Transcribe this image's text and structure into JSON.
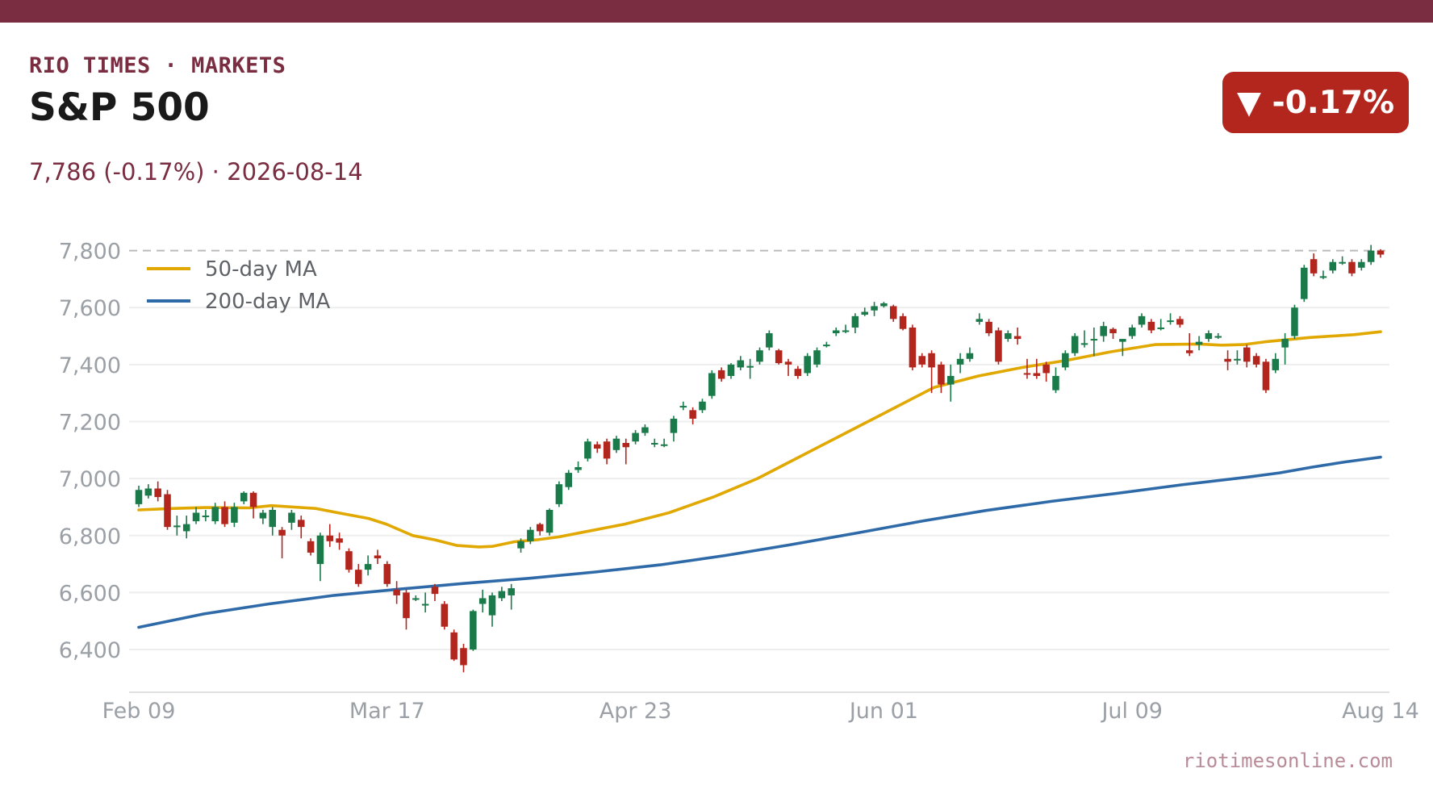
{
  "header": {
    "brand": "RIO TIMES · MARKETS",
    "title": "S&P 500",
    "subtitle": "7,786 (-0.17%)  ·  2026-08-14",
    "badge": "▼ -0.17%",
    "source": "riotimesonline.com"
  },
  "colors": {
    "brand": "#7a2c40",
    "up": "#1a7a4a",
    "down": "#b3261e",
    "ma50": "#e0a800",
    "ma200": "#2f6aa8",
    "reference_line": "#bbbbbb"
  },
  "chart_data": {
    "type": "candlestick",
    "x_ticks": [
      "Feb 09",
      "Mar 17",
      "Apr 23",
      "Jun 01",
      "Jul 09",
      "Aug 14"
    ],
    "y_ticks": [
      "6,400",
      "6,600",
      "6,800",
      "7,000",
      "7,200",
      "7,400",
      "7,600",
      "7,800"
    ],
    "ylim": [
      6250,
      7810
    ],
    "reference_level": 7800,
    "legend": [
      "50-day MA",
      "200-day MA"
    ],
    "legend_position": "top-left",
    "candles": [
      [
        6910,
        6960,
        6975,
        6900
      ],
      [
        6940,
        6965,
        6980,
        6930
      ],
      [
        6965,
        6935,
        6990,
        6920
      ],
      [
        6945,
        6830,
        6960,
        6820
      ],
      [
        6830,
        6835,
        6870,
        6800
      ],
      [
        6815,
        6840,
        6870,
        6790
      ],
      [
        6850,
        6880,
        6900,
        6840
      ],
      [
        6865,
        6870,
        6890,
        6850
      ],
      [
        6850,
        6900,
        6915,
        6840
      ],
      [
        6900,
        6840,
        6920,
        6830
      ],
      [
        6845,
        6900,
        6915,
        6830
      ],
      [
        6920,
        6950,
        6955,
        6910
      ],
      [
        6950,
        6900,
        6955,
        6860
      ],
      [
        6860,
        6880,
        6890,
        6840
      ],
      [
        6830,
        6890,
        6900,
        6800
      ],
      [
        6820,
        6800,
        6830,
        6720
      ],
      [
        6845,
        6880,
        6890,
        6820
      ],
      [
        6855,
        6830,
        6870,
        6790
      ],
      [
        6780,
        6740,
        6790,
        6730
      ],
      [
        6700,
        6800,
        6810,
        6640
      ],
      [
        6800,
        6780,
        6840,
        6760
      ],
      [
        6790,
        6775,
        6810,
        6750
      ],
      [
        6745,
        6680,
        6755,
        6670
      ],
      [
        6680,
        6630,
        6700,
        6620
      ],
      [
        6680,
        6700,
        6730,
        6660
      ],
      [
        6730,
        6720,
        6750,
        6700
      ],
      [
        6700,
        6630,
        6710,
        6620
      ],
      [
        6610,
        6590,
        6640,
        6560
      ],
      [
        6600,
        6510,
        6610,
        6470
      ],
      [
        6575,
        6580,
        6590,
        6570
      ],
      [
        6555,
        6560,
        6600,
        6530
      ],
      [
        6620,
        6595,
        6630,
        6570
      ],
      [
        6560,
        6480,
        6570,
        6470
      ],
      [
        6460,
        6365,
        6470,
        6360
      ],
      [
        6405,
        6345,
        6420,
        6320
      ],
      [
        6400,
        6535,
        6540,
        6395
      ],
      [
        6560,
        6580,
        6610,
        6530
      ],
      [
        6520,
        6590,
        6600,
        6480
      ],
      [
        6580,
        6605,
        6620,
        6570
      ],
      [
        6590,
        6615,
        6630,
        6540
      ],
      [
        6755,
        6780,
        6790,
        6740
      ],
      [
        6780,
        6820,
        6830,
        6770
      ],
      [
        6840,
        6815,
        6845,
        6800
      ],
      [
        6810,
        6890,
        6895,
        6800
      ],
      [
        6910,
        6980,
        6990,
        6900
      ],
      [
        6970,
        7020,
        7030,
        6960
      ],
      [
        7030,
        7040,
        7060,
        7020
      ],
      [
        7070,
        7130,
        7140,
        7060
      ],
      [
        7120,
        7105,
        7130,
        7090
      ],
      [
        7130,
        7070,
        7140,
        7050
      ],
      [
        7100,
        7140,
        7150,
        7090
      ],
      [
        7125,
        7110,
        7140,
        7050
      ],
      [
        7130,
        7160,
        7170,
        7120
      ],
      [
        7160,
        7180,
        7190,
        7150
      ],
      [
        7120,
        7125,
        7140,
        7110
      ],
      [
        7120,
        7120,
        7140,
        7110
      ],
      [
        7160,
        7210,
        7220,
        7130
      ],
      [
        7250,
        7255,
        7270,
        7240
      ],
      [
        7240,
        7210,
        7250,
        7190
      ],
      [
        7240,
        7270,
        7280,
        7230
      ],
      [
        7290,
        7370,
        7380,
        7280
      ],
      [
        7380,
        7350,
        7390,
        7340
      ],
      [
        7360,
        7400,
        7405,
        7350
      ],
      [
        7390,
        7415,
        7430,
        7380
      ],
      [
        7390,
        7395,
        7420,
        7350
      ],
      [
        7410,
        7450,
        7460,
        7400
      ],
      [
        7460,
        7510,
        7520,
        7450
      ],
      [
        7450,
        7405,
        7455,
        7400
      ],
      [
        7410,
        7400,
        7420,
        7360
      ],
      [
        7385,
        7360,
        7395,
        7350
      ],
      [
        7370,
        7430,
        7440,
        7360
      ],
      [
        7400,
        7450,
        7460,
        7390
      ],
      [
        7470,
        7470,
        7480,
        7460
      ],
      [
        7510,
        7520,
        7530,
        7500
      ],
      [
        7520,
        7520,
        7540,
        7510
      ],
      [
        7530,
        7570,
        7580,
        7510
      ],
      [
        7575,
        7585,
        7600,
        7570
      ],
      [
        7590,
        7605,
        7620,
        7570
      ],
      [
        7605,
        7615,
        7620,
        7600
      ],
      [
        7605,
        7560,
        7610,
        7550
      ],
      [
        7570,
        7525,
        7580,
        7520
      ],
      [
        7530,
        7390,
        7540,
        7380
      ],
      [
        7430,
        7400,
        7440,
        7390
      ],
      [
        7440,
        7390,
        7450,
        7300
      ],
      [
        7400,
        7330,
        7410,
        7300
      ],
      [
        7330,
        7360,
        7400,
        7270
      ],
      [
        7400,
        7420,
        7440,
        7370
      ],
      [
        7420,
        7440,
        7460,
        7410
      ],
      [
        7550,
        7560,
        7580,
        7540
      ],
      [
        7550,
        7510,
        7560,
        7500
      ],
      [
        7520,
        7410,
        7530,
        7400
      ],
      [
        7490,
        7510,
        7520,
        7480
      ],
      [
        7500,
        7490,
        7530,
        7470
      ],
      [
        7370,
        7365,
        7420,
        7350
      ],
      [
        7370,
        7360,
        7420,
        7350
      ],
      [
        7400,
        7370,
        7410,
        7340
      ],
      [
        7310,
        7360,
        7390,
        7300
      ],
      [
        7390,
        7440,
        7450,
        7380
      ],
      [
        7440,
        7500,
        7510,
        7430
      ],
      [
        7470,
        7475,
        7520,
        7460
      ],
      [
        7485,
        7490,
        7530,
        7430
      ],
      [
        7500,
        7535,
        7550,
        7480
      ],
      [
        7525,
        7510,
        7530,
        7490
      ],
      [
        7480,
        7490,
        7490,
        7430
      ],
      [
        7500,
        7530,
        7540,
        7490
      ],
      [
        7540,
        7570,
        7580,
        7530
      ],
      [
        7550,
        7520,
        7560,
        7510
      ],
      [
        7530,
        7530,
        7560,
        7520
      ],
      [
        7555,
        7555,
        7580,
        7540
      ],
      [
        7560,
        7540,
        7570,
        7530
      ],
      [
        7450,
        7440,
        7510,
        7430
      ],
      [
        7470,
        7480,
        7500,
        7450
      ],
      [
        7490,
        7510,
        7520,
        7480
      ],
      [
        7500,
        7500,
        7510,
        7490
      ],
      [
        7420,
        7410,
        7450,
        7380
      ],
      [
        7420,
        7420,
        7450,
        7400
      ],
      [
        7460,
        7410,
        7470,
        7390
      ],
      [
        7430,
        7400,
        7440,
        7390
      ],
      [
        7410,
        7310,
        7420,
        7300
      ],
      [
        7380,
        7420,
        7440,
        7370
      ],
      [
        7460,
        7490,
        7510,
        7400
      ],
      [
        7500,
        7600,
        7610,
        7490
      ],
      [
        7630,
        7740,
        7750,
        7620
      ],
      [
        7770,
        7720,
        7790,
        7710
      ],
      [
        7710,
        7710,
        7730,
        7700
      ],
      [
        7730,
        7760,
        7770,
        7720
      ],
      [
        7760,
        7760,
        7780,
        7750
      ],
      [
        7760,
        7720,
        7770,
        7710
      ],
      [
        7740,
        7760,
        7770,
        7730
      ],
      [
        7760,
        7800,
        7820,
        7750
      ],
      [
        7800,
        7786,
        7805,
        7775
      ]
    ],
    "ma50": [
      [
        0,
        6890
      ],
      [
        8,
        6895
      ],
      [
        15,
        6898
      ],
      [
        25,
        6897
      ],
      [
        30,
        6905
      ],
      [
        40,
        6895
      ],
      [
        45,
        6880
      ],
      [
        52,
        6860
      ],
      [
        56,
        6840
      ],
      [
        62,
        6800
      ],
      [
        67,
        6785
      ],
      [
        72,
        6765
      ],
      [
        77,
        6760
      ],
      [
        80,
        6762
      ],
      [
        85,
        6778
      ],
      [
        90,
        6785
      ],
      [
        95,
        6795
      ],
      [
        100,
        6810
      ],
      [
        110,
        6840
      ],
      [
        120,
        6880
      ],
      [
        130,
        6935
      ],
      [
        140,
        7000
      ],
      [
        150,
        7080
      ],
      [
        160,
        7160
      ],
      [
        170,
        7240
      ],
      [
        175,
        7280
      ],
      [
        180,
        7320
      ],
      [
        190,
        7360
      ],
      [
        200,
        7390
      ],
      [
        210,
        7415
      ],
      [
        220,
        7445
      ],
      [
        230,
        7470
      ],
      [
        240,
        7472
      ],
      [
        245,
        7468
      ],
      [
        250,
        7470
      ],
      [
        255,
        7480
      ],
      [
        265,
        7495
      ],
      [
        275,
        7505
      ],
      [
        281,
        7515
      ]
    ],
    "ma200": [
      [
        0,
        6478
      ],
      [
        20,
        6525
      ],
      [
        40,
        6560
      ],
      [
        60,
        6590
      ],
      [
        80,
        6612
      ],
      [
        100,
        6632
      ],
      [
        120,
        6650
      ],
      [
        140,
        6672
      ],
      [
        160,
        6697
      ],
      [
        180,
        6730
      ],
      [
        200,
        6768
      ],
      [
        220,
        6808
      ],
      [
        240,
        6850
      ],
      [
        260,
        6888
      ],
      [
        280,
        6920
      ],
      [
        300,
        6948
      ],
      [
        320,
        6978
      ],
      [
        340,
        7005
      ],
      [
        350,
        7020
      ],
      [
        360,
        7040
      ],
      [
        370,
        7058
      ],
      [
        381,
        7075
      ]
    ]
  }
}
